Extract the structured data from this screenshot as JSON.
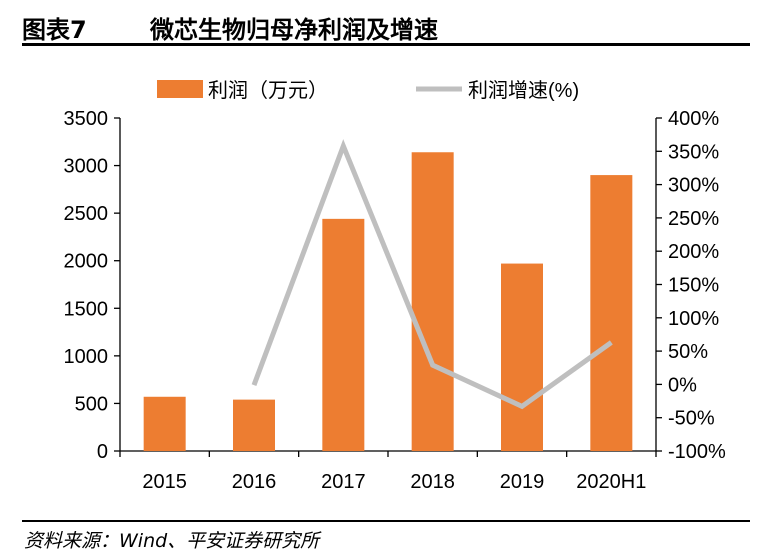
{
  "header": {
    "figure_label": "图表7",
    "title": "微芯生物归母净利润及增速"
  },
  "source": "资料来源：Wind、平安证券研究所",
  "chart_data": {
    "type": "bar",
    "categories": [
      "2015",
      "2016",
      "2017",
      "2018",
      "2019",
      "2020H1"
    ],
    "series": [
      {
        "name": "利润（万元）",
        "type": "bar",
        "axis": "left",
        "color": "#ED7D31",
        "values": [
          570,
          540,
          2440,
          3140,
          1970,
          2900
        ]
      },
      {
        "name": "利润增速(%)",
        "type": "line",
        "axis": "right",
        "color": "#BFBFBF",
        "values": [
          null,
          -1,
          358,
          29,
          -33,
          63
        ]
      }
    ],
    "y_left": {
      "min": 0,
      "max": 3500,
      "ticks": [
        0,
        500,
        1000,
        1500,
        2000,
        2500,
        3000,
        3500
      ],
      "tick_labels": [
        "0",
        "500",
        "1000",
        "1500",
        "2000",
        "2500",
        "3000",
        "3500"
      ]
    },
    "y_right": {
      "min": -100,
      "max": 400,
      "ticks": [
        -100,
        -50,
        0,
        50,
        100,
        150,
        200,
        250,
        300,
        350,
        400
      ],
      "tick_labels": [
        "-100%",
        "-50%",
        "0%",
        "50%",
        "100%",
        "150%",
        "200%",
        "250%",
        "300%",
        "350%",
        "400%"
      ]
    },
    "legend": {
      "position": "top",
      "items": [
        "利润（万元）",
        "利润增速(%)"
      ]
    },
    "grid": false
  }
}
